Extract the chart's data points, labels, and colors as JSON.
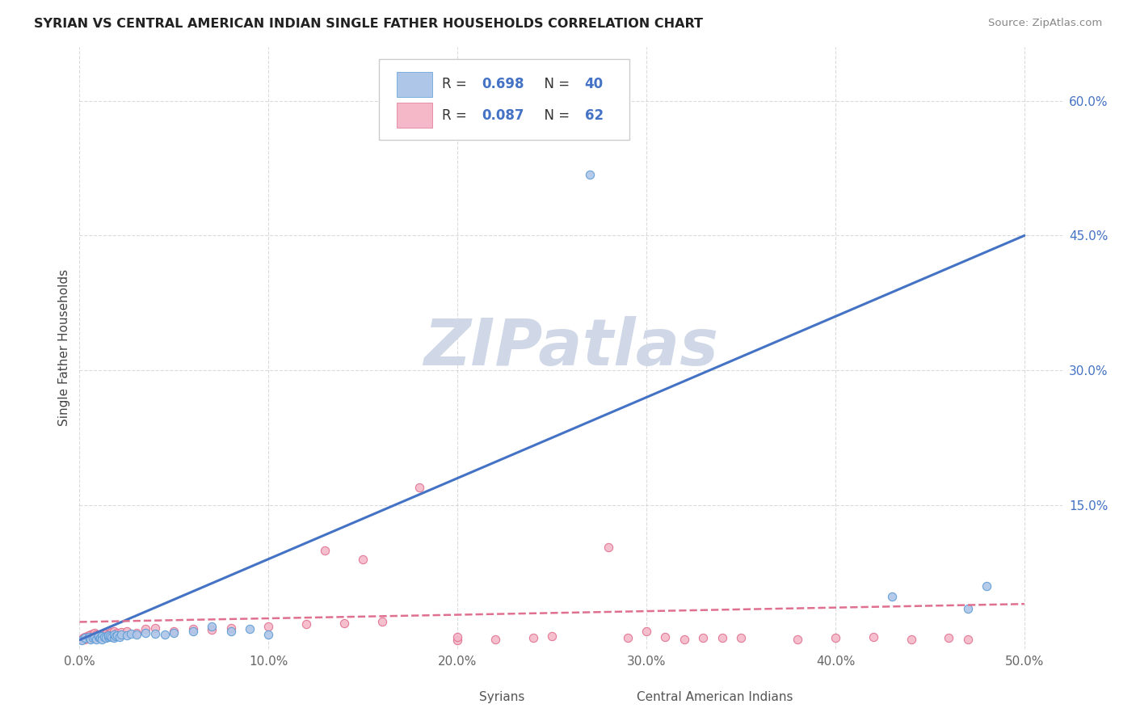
{
  "title": "SYRIAN VS CENTRAL AMERICAN INDIAN SINGLE FATHER HOUSEHOLDS CORRELATION CHART",
  "source": "Source: ZipAtlas.com",
  "ylabel": "Single Father Households",
  "xlim": [
    0.0,
    0.52
  ],
  "ylim": [
    -0.01,
    0.66
  ],
  "xtick_vals": [
    0.0,
    0.1,
    0.2,
    0.3,
    0.4,
    0.5
  ],
  "xtick_labels": [
    "0.0%",
    "10.0%",
    "20.0%",
    "30.0%",
    "40.0%",
    "50.0%"
  ],
  "ytick_vals": [
    0.15,
    0.3,
    0.45,
    0.6
  ],
  "ytick_labels": [
    "15.0%",
    "30.0%",
    "45.0%",
    "60.0%"
  ],
  "legend_labels": [
    "Syrians",
    "Central American Indians"
  ],
  "syrian_R": "0.698",
  "syrian_N": "40",
  "cai_R": "0.087",
  "cai_N": "62",
  "syrian_fill_color": "#aec6e8",
  "syrian_edge_color": "#5b9bd5",
  "syrian_line_color": "#4472c4",
  "cai_fill_color": "#f4b8c8",
  "cai_edge_color": "#e07090",
  "cai_line_color": "#e07090",
  "background_color": "#ffffff",
  "grid_color": "#cccccc",
  "title_color": "#222222",
  "source_color": "#888888",
  "ylabel_color": "#444444",
  "tick_color": "#666666",
  "ytick_color": "#4472c4",
  "watermark_color": "#d0d8e8",
  "watermark_text": "ZIPatlas",
  "legend_box_color": "#eeeeee",
  "legend_edge_color": "#cccccc",
  "syrian_scatter_x": [
    0.001,
    0.003,
    0.005,
    0.006,
    0.007,
    0.008,
    0.009,
    0.01,
    0.01,
    0.011,
    0.012,
    0.012,
    0.013,
    0.014,
    0.015,
    0.015,
    0.016,
    0.017,
    0.018,
    0.018,
    0.019,
    0.02,
    0.021,
    0.022,
    0.025,
    0.027,
    0.03,
    0.035,
    0.04,
    0.045,
    0.05,
    0.06,
    0.07,
    0.08,
    0.09,
    0.1,
    0.27,
    0.43,
    0.47,
    0.48
  ],
  "syrian_scatter_y": [
    0.0,
    0.002,
    0.003,
    0.001,
    0.002,
    0.003,
    0.001,
    0.003,
    0.005,
    0.002,
    0.004,
    0.001,
    0.003,
    0.002,
    0.003,
    0.005,
    0.004,
    0.003,
    0.002,
    0.006,
    0.004,
    0.005,
    0.003,
    0.006,
    0.005,
    0.007,
    0.006,
    0.008,
    0.007,
    0.006,
    0.008,
    0.01,
    0.015,
    0.01,
    0.012,
    0.006,
    0.518,
    0.048,
    0.035,
    0.06
  ],
  "cai_scatter_x": [
    0.001,
    0.002,
    0.003,
    0.003,
    0.004,
    0.004,
    0.005,
    0.005,
    0.006,
    0.006,
    0.007,
    0.007,
    0.008,
    0.008,
    0.009,
    0.009,
    0.01,
    0.01,
    0.011,
    0.012,
    0.013,
    0.014,
    0.015,
    0.016,
    0.017,
    0.018,
    0.02,
    0.022,
    0.025,
    0.03,
    0.035,
    0.04,
    0.05,
    0.06,
    0.07,
    0.08,
    0.1,
    0.12,
    0.14,
    0.16,
    0.18,
    0.2,
    0.22,
    0.24,
    0.28,
    0.3,
    0.32,
    0.35,
    0.38,
    0.4,
    0.42,
    0.44,
    0.46,
    0.47,
    0.29,
    0.31,
    0.33,
    0.13,
    0.15,
    0.2,
    0.25,
    0.34
  ],
  "cai_scatter_y": [
    0.001,
    0.002,
    0.003,
    0.001,
    0.004,
    0.002,
    0.005,
    0.003,
    0.006,
    0.002,
    0.007,
    0.004,
    0.008,
    0.003,
    0.006,
    0.002,
    0.005,
    0.003,
    0.004,
    0.006,
    0.005,
    0.007,
    0.006,
    0.008,
    0.009,
    0.01,
    0.008,
    0.009,
    0.01,
    0.008,
    0.012,
    0.013,
    0.01,
    0.012,
    0.011,
    0.013,
    0.015,
    0.018,
    0.019,
    0.02,
    0.17,
    0.0,
    0.001,
    0.002,
    0.103,
    0.01,
    0.001,
    0.002,
    0.001,
    0.002,
    0.003,
    0.001,
    0.002,
    0.001,
    0.002,
    0.003,
    0.002,
    0.1,
    0.09,
    0.003,
    0.004,
    0.002
  ],
  "syrian_line_x0": 0.0,
  "syrian_line_x1": 0.5,
  "syrian_line_y0": 0.0,
  "syrian_line_y1": 0.45,
  "cai_line_x0": 0.0,
  "cai_line_x1": 0.5,
  "cai_line_y0": 0.02,
  "cai_line_y1": 0.04
}
